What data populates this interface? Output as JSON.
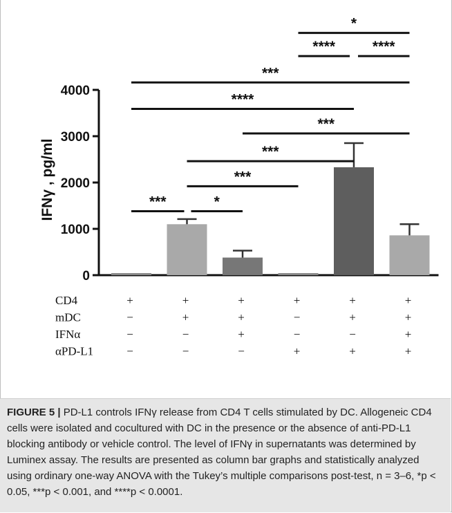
{
  "chart_data": {
    "type": "bar",
    "title": "",
    "ylabel": "IFNγ , pg/ml",
    "ylim": [
      0,
      4000
    ],
    "yticks": [
      0,
      1000,
      2000,
      3000,
      4000
    ],
    "ytick_labels": [
      "0",
      "1000",
      "2000",
      "3000",
      "4000"
    ],
    "values": [
      40,
      1100,
      380,
      30,
      2330,
      860
    ],
    "errors": [
      10,
      110,
      150,
      10,
      520,
      240
    ],
    "bar_colors": [
      "#8a8a8a",
      "#a9a9a9",
      "#777777",
      "#8a8a8a",
      "#5e5e5e",
      "#a9a9a9"
    ],
    "conditions": [
      {
        "name": "CD4",
        "signs": [
          "+",
          "+",
          "+",
          "+",
          "+",
          "+"
        ]
      },
      {
        "name": "mDC",
        "signs": [
          "−",
          "+",
          "+",
          "−",
          "+",
          "+"
        ]
      },
      {
        "name": "IFNα",
        "signs": [
          "−",
          "−",
          "+",
          "−",
          "−",
          "+"
        ]
      },
      {
        "name": "αPD-L1",
        "signs": [
          "−",
          "−",
          "−",
          "+",
          "+",
          "+"
        ]
      }
    ],
    "significance": [
      {
        "from": 0,
        "to": 1,
        "label": "***",
        "level": 1380
      },
      {
        "from": 1,
        "to": 2,
        "label": "*",
        "level": 1380
      },
      {
        "from": 1,
        "to": 3,
        "label": "***",
        "level": 1920
      },
      {
        "from": 1,
        "to": 4,
        "label": "***",
        "level": 2460
      },
      {
        "from": 2,
        "to": 5,
        "label": "***",
        "level": 3060
      },
      {
        "from": 0,
        "to": 4,
        "label": "****",
        "level": 3590
      },
      {
        "from": 0,
        "to": 5,
        "label": "***",
        "level": 4160
      },
      {
        "from": 3,
        "to": 4,
        "label": "****",
        "level": 4730
      },
      {
        "from": 4,
        "to": 5,
        "label": "****",
        "level": 4730
      },
      {
        "from": 3,
        "to": 5,
        "label": "*",
        "level": 5230
      }
    ]
  },
  "caption": {
    "label": "FIGURE 5 |",
    "text": " PD-L1 controls IFNγ release from CD4 T cells stimulated by DC. Allogeneic CD4 cells were isolated and cocultured with DC in the presence or the absence of anti-PD-L1 blocking antibody or vehicle control. The level of IFNγ in supernatants was determined by Luminex assay. The results are presented as column bar graphs and statistically analyzed using ordinary one-way ANOVA with the Tukey’s multiple comparisons post-test, n = 3–6, *p < 0.05, ***p < 0.001, and ****p < 0.0001."
  }
}
